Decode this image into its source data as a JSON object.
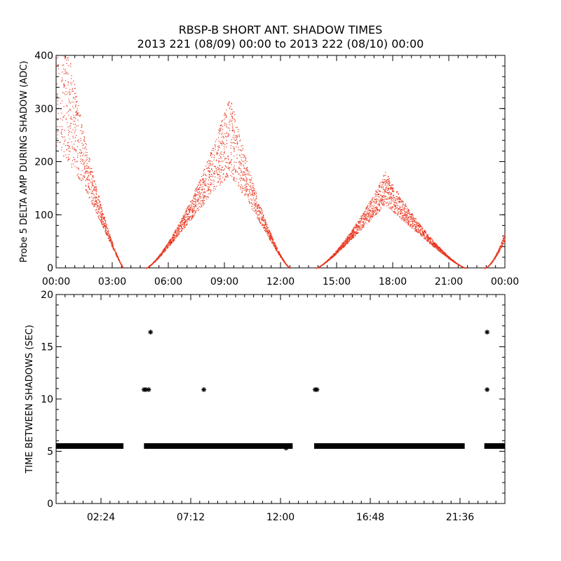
{
  "title_line1": "RBSP-B SHORT ANT. SHADOW TIMES",
  "title_line2": "2013 221 (08/09) 00:00 to 2013 222 (08/10) 00:00",
  "chart_data": [
    {
      "type": "scatter",
      "id": "delta-amp",
      "ylabel": "Probe 5 DELTA AMP DURING SHADOW (ADC)",
      "xlabel": "",
      "x_unit": "hours",
      "xlim": [
        0,
        24
      ],
      "ylim": [
        0,
        400
      ],
      "x_tick_labels": [
        "00:00",
        "03:00",
        "06:00",
        "09:00",
        "12:00",
        "15:00",
        "18:00",
        "21:00",
        "00:00"
      ],
      "x_tick_values": [
        0,
        3,
        6,
        9,
        12,
        15,
        18,
        21,
        24
      ],
      "y_tick_labels": [
        "0",
        "100",
        "200",
        "300",
        "400"
      ],
      "y_tick_values": [
        0,
        100,
        200,
        300,
        400
      ],
      "marker_color": "#e8341c",
      "segments": [
        {
          "t_start": 0.0,
          "t_end": 3.6,
          "peak_hour": 0.0,
          "peak": 360,
          "shape": "fall"
        },
        {
          "t_start": 4.8,
          "t_end": 12.5,
          "peak_hour": 9.3,
          "peak": 250,
          "shape": "hump"
        },
        {
          "t_start": 13.9,
          "t_end": 21.9,
          "peak_hour": 17.6,
          "peak": 150,
          "shape": "hump"
        },
        {
          "t_start": 22.9,
          "t_end": 24.0,
          "peak_hour": 24.0,
          "peak": 60,
          "shape": "rise"
        }
      ]
    },
    {
      "type": "scatter",
      "id": "time-between",
      "ylabel": "TIME BETWEEN SHADOWS (SEC)",
      "xlabel": "",
      "x_unit": "hours",
      "xlim": [
        0,
        24
      ],
      "ylim": [
        0,
        20
      ],
      "x_tick_labels": [
        "02:24",
        "07:12",
        "12:00",
        "16:48",
        "21:36"
      ],
      "x_tick_values": [
        2.4,
        7.2,
        12.0,
        16.8,
        21.6
      ],
      "y_tick_labels": [
        "0",
        "5",
        "10",
        "15",
        "20"
      ],
      "y_tick_values": [
        0,
        5,
        10,
        15,
        20
      ],
      "marker_color": "#000000",
      "baseline_value": 5.5,
      "baseline_segments": [
        [
          0.0,
          3.6
        ],
        [
          4.7,
          12.65
        ],
        [
          13.8,
          21.85
        ],
        [
          22.9,
          24.0
        ]
      ],
      "points": [
        {
          "x": 4.7,
          "y": 10.9
        },
        {
          "x": 4.8,
          "y": 10.9
        },
        {
          "x": 4.95,
          "y": 10.9
        },
        {
          "x": 5.05,
          "y": 16.4
        },
        {
          "x": 7.9,
          "y": 10.9
        },
        {
          "x": 13.85,
          "y": 10.9
        },
        {
          "x": 13.95,
          "y": 10.9
        },
        {
          "x": 23.05,
          "y": 16.4
        },
        {
          "x": 23.05,
          "y": 10.9
        },
        {
          "x": 12.3,
          "y": 5.3
        }
      ]
    }
  ]
}
